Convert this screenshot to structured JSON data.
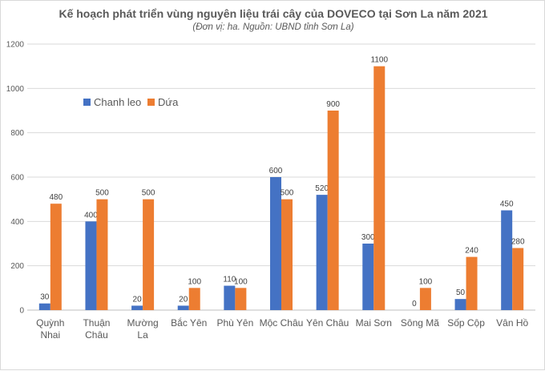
{
  "chart_data": {
    "type": "bar",
    "title": "Kế hoạch phát triển vùng nguyên liệu trái cây của DOVECO tại Sơn La năm 2021",
    "subtitle": "(Đơn vị: ha. Nguồn: UBND tỉnh Sơn La)",
    "categories": [
      [
        "Quỳnh",
        "Nhai"
      ],
      [
        "Thuận",
        "Châu"
      ],
      [
        "Mường",
        "La"
      ],
      [
        "Bắc Yên"
      ],
      [
        "Phù Yên"
      ],
      [
        "Mộc Châu"
      ],
      [
        "Yên Châu"
      ],
      [
        "Mai Sơn"
      ],
      [
        "Sông Mã"
      ],
      [
        "Sốp Cộp"
      ],
      [
        "Vân Hồ"
      ]
    ],
    "series": [
      {
        "name": "Chanh leo",
        "color": "#4472c4",
        "values": [
          30,
          400,
          20,
          20,
          110,
          600,
          520,
          300,
          0,
          50,
          450
        ]
      },
      {
        "name": "Dứa",
        "color": "#ed7d31",
        "values": [
          480,
          500,
          500,
          100,
          100,
          500,
          900,
          1100,
          100,
          240,
          280
        ]
      }
    ],
    "ylim": [
      0,
      1200
    ],
    "yticks": [
      0,
      200,
      400,
      600,
      800,
      1000,
      1200
    ],
    "grid": true,
    "legend": "top-left"
  }
}
